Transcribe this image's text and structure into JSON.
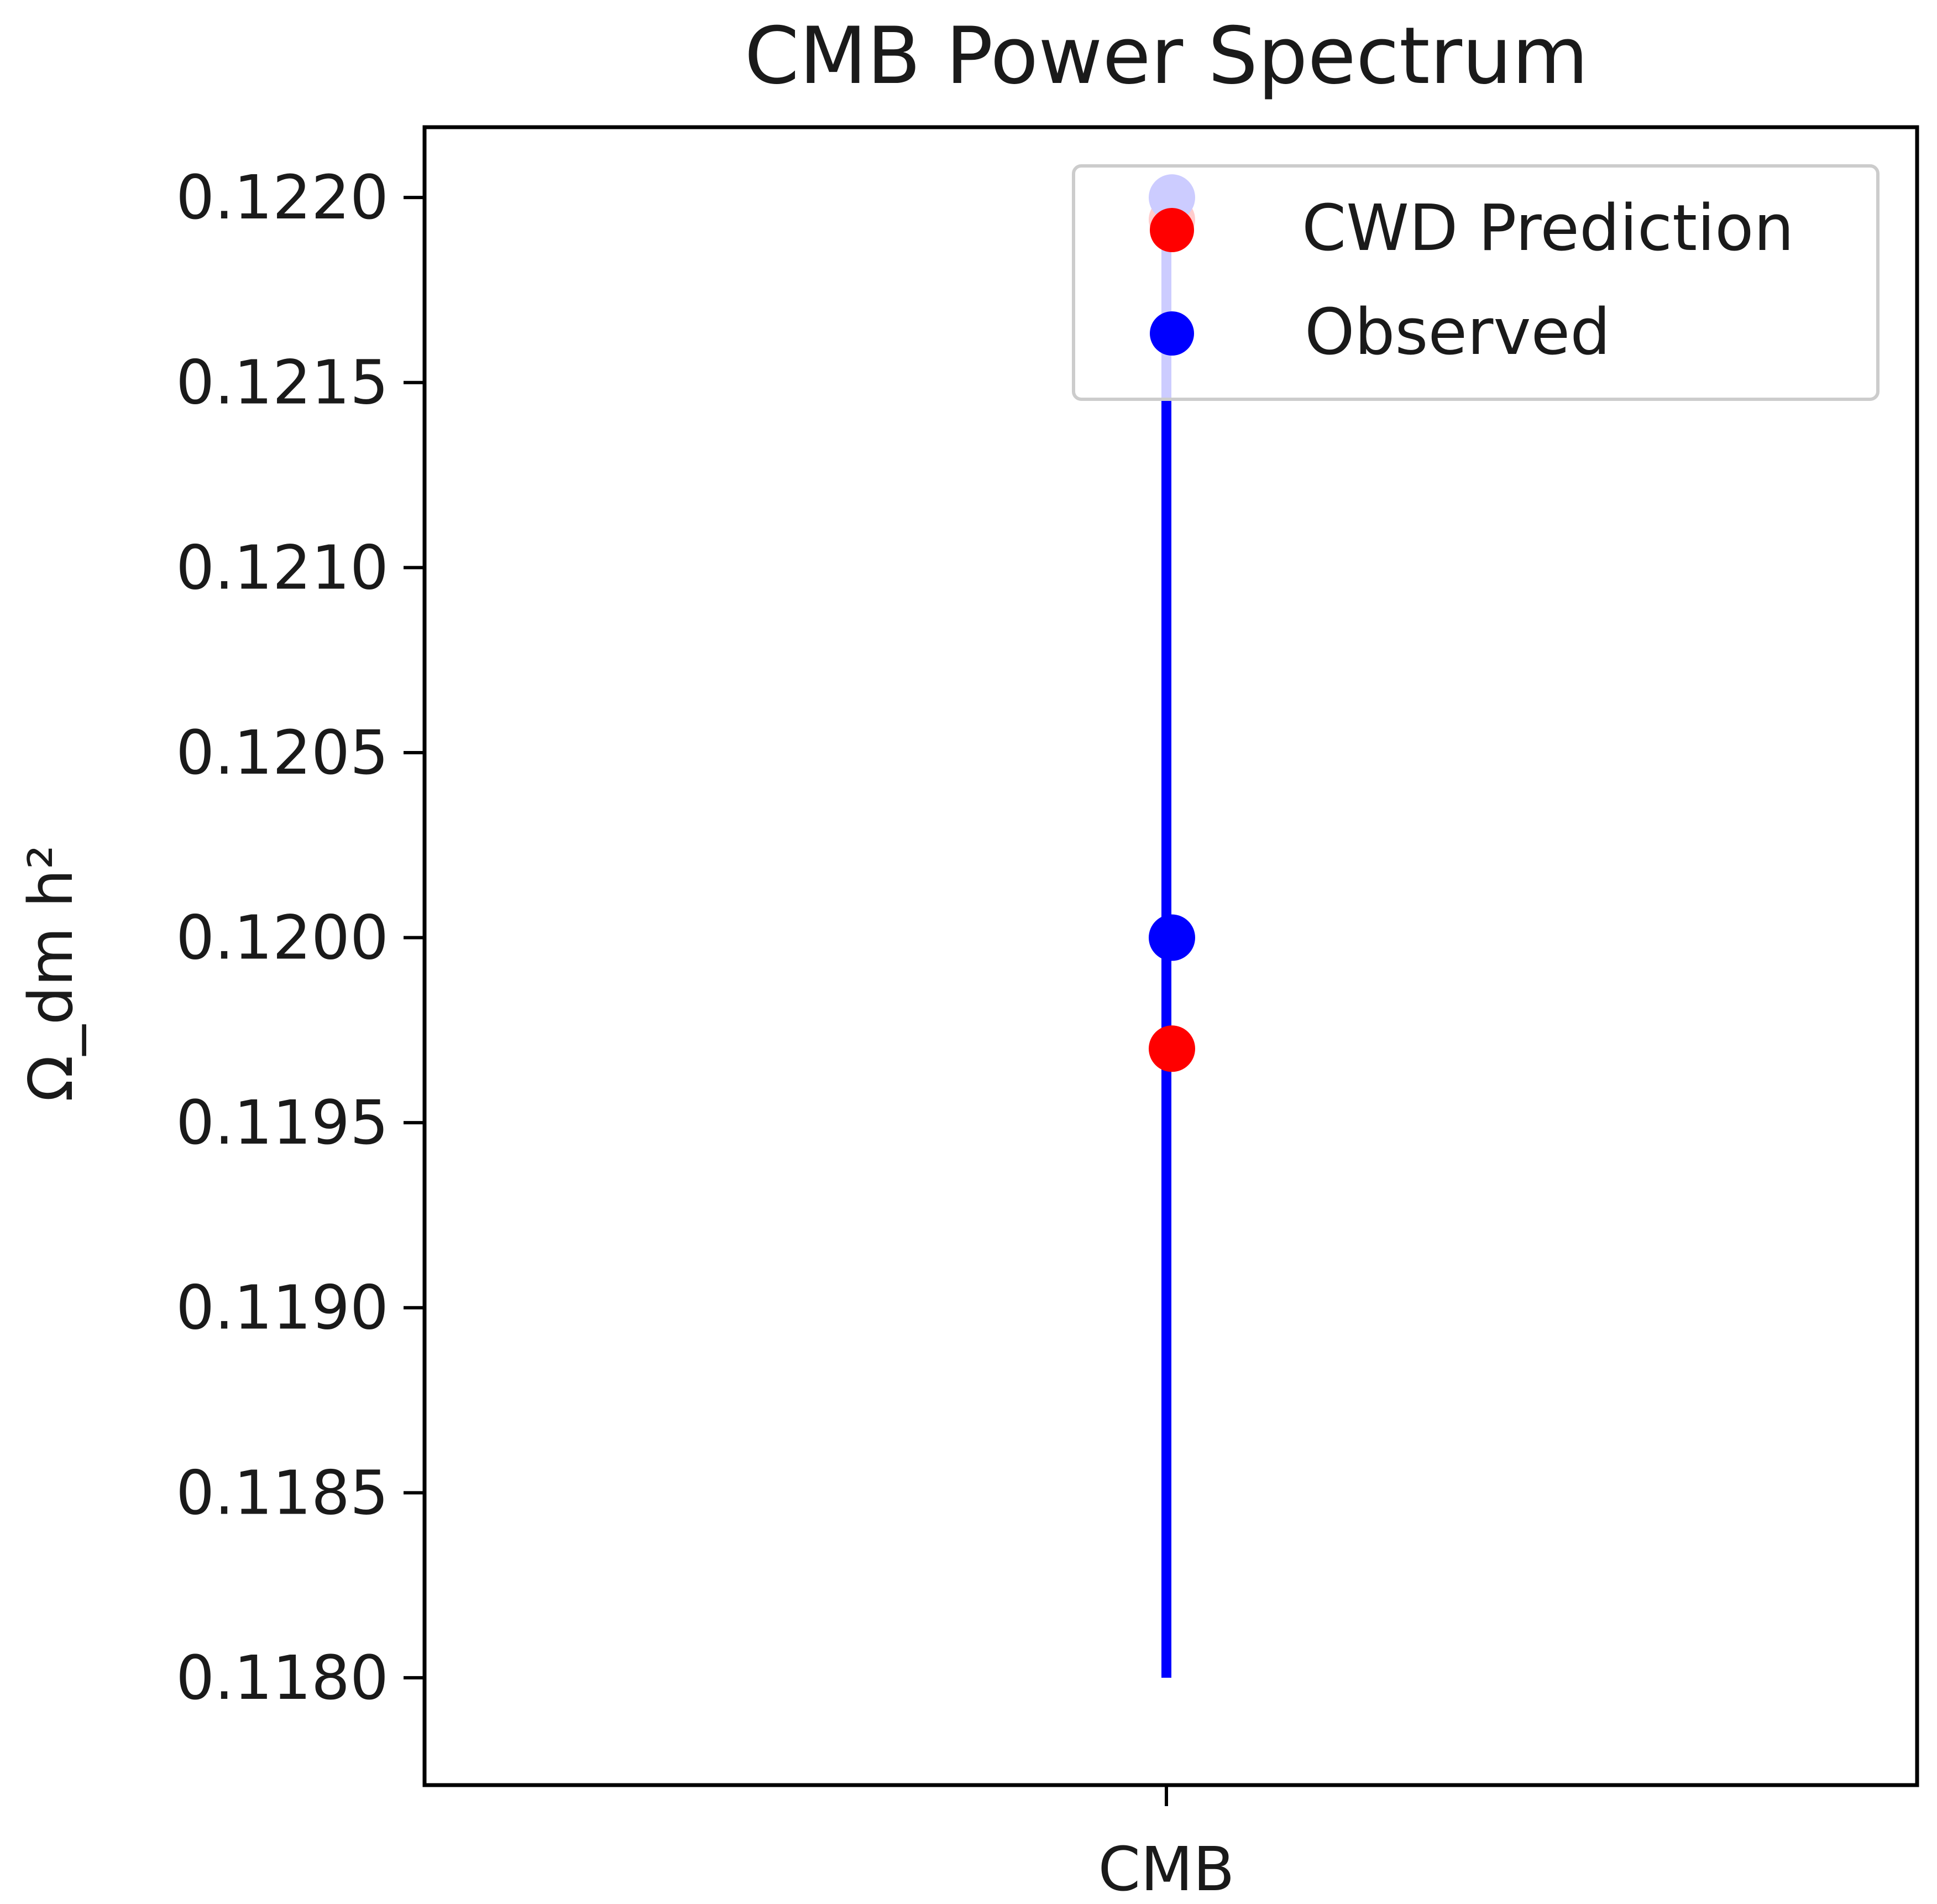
{
  "chart_data": {
    "type": "scatter",
    "title": "CMB Power Spectrum",
    "xlabel": "",
    "ylabel": "Ω_dm h²",
    "categories": [
      "CMB"
    ],
    "ylim": [
      0.11771,
      0.12219
    ],
    "yticks": [
      "0.1180",
      "0.1185",
      "0.1190",
      "0.1195",
      "0.1200",
      "0.1205",
      "0.1210",
      "0.1215",
      "0.1220"
    ],
    "ytick_values": [
      0.118,
      0.1185,
      0.119,
      0.1195,
      0.12,
      0.1205,
      0.121,
      0.1215,
      0.122
    ],
    "grid": false,
    "legend_position": "upper right",
    "series": [
      {
        "name": "CWD Prediction",
        "color": "#ff0000",
        "points": [
          {
            "x": "CMB",
            "y": 0.1197
          },
          {
            "x": "CMB",
            "y": 0.12194
          }
        ]
      },
      {
        "name": "Observed",
        "color": "#0000ff",
        "points": [
          {
            "x": "CMB",
            "y": 0.12,
            "yerr_low": 0.118,
            "yerr_high": 0.122
          }
        ]
      }
    ]
  }
}
